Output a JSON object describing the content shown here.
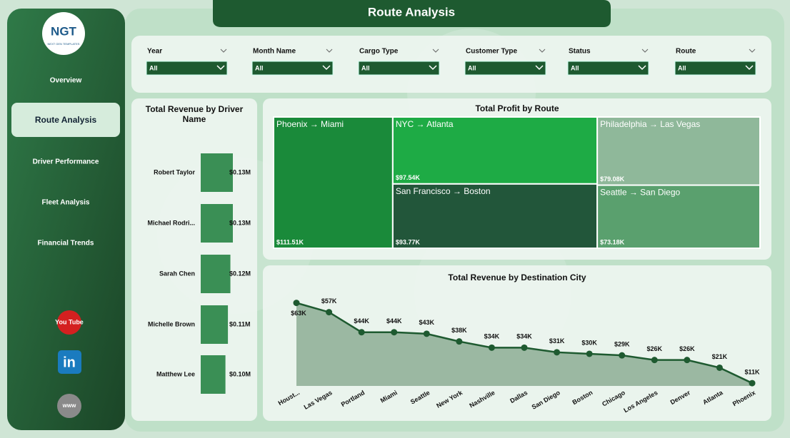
{
  "header": {
    "title": "Route Analysis"
  },
  "logo": {
    "text": "NGT",
    "subtitle": "NEXT GEN TEMPLATES"
  },
  "nav": [
    {
      "label": "Overview",
      "active": false
    },
    {
      "label": "Route Analysis",
      "active": true
    },
    {
      "label": "Driver Performance",
      "active": false
    },
    {
      "label": "Fleet Analysis",
      "active": false
    },
    {
      "label": "Financial Trends",
      "active": false
    }
  ],
  "social": [
    "You Tube",
    "in",
    "www"
  ],
  "filters": [
    {
      "label": "Year",
      "value": "All"
    },
    {
      "label": "Month Name",
      "value": "All"
    },
    {
      "label": "Cargo Type",
      "value": "All"
    },
    {
      "label": "Customer Type",
      "value": "All"
    },
    {
      "label": "Status",
      "value": "All"
    },
    {
      "label": "Route",
      "value": "All"
    }
  ],
  "chart_data": [
    {
      "type": "hbar",
      "title": "Total Revenue by Driver Name",
      "color": "#3a8f55",
      "categories": [
        "Robert Taylor",
        "Michael Rodri...",
        "Sarah Chen",
        "Michelle Brown",
        "Matthew Lee"
      ],
      "values": [
        0.13,
        0.13,
        0.12,
        0.11,
        0.1
      ],
      "value_labels": [
        "$0.13M",
        "$0.13M",
        "$0.12M",
        "$0.11M",
        "$0.10M"
      ]
    },
    {
      "type": "treemap",
      "title": "Total Profit by Route",
      "categories": [
        "Phoenix → Miami",
        "NYC → Atlanta",
        "Philadelphia → Las Vegas",
        "San Francisco → Boston",
        "Seattle → San Diego"
      ],
      "values": [
        111.51,
        97.54,
        79.08,
        93.77,
        73.18
      ],
      "value_labels": [
        "$111.51K",
        "$97.54K",
        "$79.08K",
        "$93.77K",
        "$73.18K"
      ],
      "colors": [
        "#1a8a3a",
        "#1eab45",
        "#8fb89a",
        "#22563a",
        "#5aa06e"
      ]
    },
    {
      "type": "area",
      "title": "Total Revenue by Destination City",
      "color": "#1e5a30",
      "fill": "#9bb8a2",
      "categories": [
        "Houst...",
        "Las Vegas",
        "Portland",
        "Miami",
        "Seattle",
        "New York",
        "Nashville",
        "Dallas",
        "San Diego",
        "Boston",
        "Chicago",
        "Los Angeles",
        "Denver",
        "Atlanta",
        "Phoenix"
      ],
      "values": [
        63,
        57,
        44,
        44,
        43,
        38,
        34,
        34,
        31,
        30,
        29,
        26,
        26,
        21,
        11
      ],
      "value_labels": [
        "$63K",
        "$57K",
        "$44K",
        "$44K",
        "$43K",
        "$38K",
        "$34K",
        "$34K",
        "$31K",
        "$30K",
        "$29K",
        "$26K",
        "$26K",
        "$21K",
        "$11K"
      ]
    }
  ]
}
